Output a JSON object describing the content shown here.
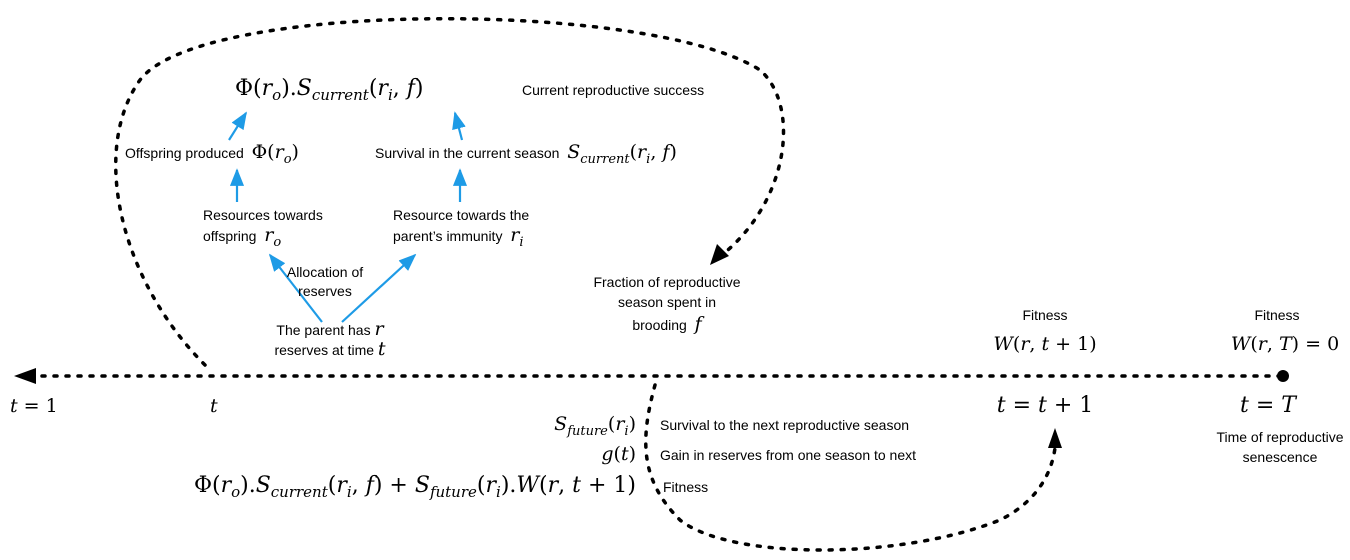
{
  "labels": [
    {
      "segments": [
        {
          "up": "Φ("
        },
        {
          "m": "r"
        },
        {
          "sub": "o"
        },
        {
          "up": ")."
        },
        {
          "m": "S"
        },
        {
          "sub": "current"
        },
        {
          "up": "("
        },
        {
          "m": "r"
        },
        {
          "sub": "i"
        },
        {
          "up": ", "
        },
        {
          "m": "f"
        },
        {
          "up": ")"
        }
      ]
    },
    {
      "segments": [
        {
          "t": "Current reproductive success"
        }
      ]
    },
    {
      "segments": [
        {
          "t": "Offspring produced  "
        },
        {
          "up": "Φ("
        },
        {
          "m": "r"
        },
        {
          "sub": "o"
        },
        {
          "up": ")"
        }
      ]
    },
    {
      "segments": [
        {
          "t": "Survival in the current season  "
        },
        {
          "m": "S"
        },
        {
          "sub": "current"
        },
        {
          "up": "("
        },
        {
          "m": "r"
        },
        {
          "sub": "i"
        },
        {
          "up": ", "
        },
        {
          "m": "f"
        },
        {
          "up": ")"
        }
      ]
    },
    {
      "segments": [
        {
          "t": "Resources towards"
        }
      ]
    },
    {
      "segments": [
        {
          "t": "offspring  "
        },
        {
          "m": "r"
        },
        {
          "sub": "o"
        }
      ]
    },
    {
      "segments": [
        {
          "t": "Resource towards the"
        }
      ]
    },
    {
      "segments": [
        {
          "t": "parent’s immunity  "
        },
        {
          "m": "r"
        },
        {
          "sub": "i"
        }
      ]
    },
    {
      "segments": [
        {
          "t": "Allocation of"
        }
      ]
    },
    {
      "segments": [
        {
          "t": "reserves"
        }
      ]
    },
    {
      "segments": [
        {
          "t": "The parent has "
        },
        {
          "m": "r"
        }
      ]
    },
    {
      "segments": [
        {
          "t": "reserves at time "
        },
        {
          "m": "t"
        }
      ]
    },
    {
      "segments": [
        {
          "t": "Fraction of reproductive"
        }
      ]
    },
    {
      "segments": [
        {
          "t": "season spent in"
        }
      ]
    },
    {
      "segments": [
        {
          "t": "brooding  "
        },
        {
          "m": "f"
        }
      ]
    },
    {
      "segments": [
        {
          "t": "Fitness"
        }
      ]
    },
    {
      "segments": [
        {
          "m": "W"
        },
        {
          "up": "("
        },
        {
          "m": "r"
        },
        {
          "up": ", "
        },
        {
          "m": "t"
        },
        {
          "up": " + 1)"
        }
      ]
    },
    {
      "segments": [
        {
          "t": "Fitness"
        }
      ]
    },
    {
      "segments": [
        {
          "m": "W"
        },
        {
          "up": "("
        },
        {
          "m": "r"
        },
        {
          "up": ", "
        },
        {
          "m": "T"
        },
        {
          "up": ") = 0"
        }
      ]
    },
    {
      "segments": [
        {
          "m": "t"
        },
        {
          "up": " = 1"
        }
      ]
    },
    {
      "segments": [
        {
          "m": "t"
        }
      ]
    },
    {
      "segments": [
        {
          "m": "t"
        },
        {
          "up": " = "
        },
        {
          "m": "t"
        },
        {
          "up": " + 1"
        }
      ]
    },
    {
      "segments": [
        {
          "m": "t"
        },
        {
          "up": " = "
        },
        {
          "m": "T"
        }
      ]
    },
    {
      "segments": [
        {
          "t": "Time of reproductive"
        }
      ]
    },
    {
      "segments": [
        {
          "t": "senescence"
        }
      ]
    },
    {
      "segments": [
        {
          "m": "S"
        },
        {
          "sub": "future"
        },
        {
          "up": "("
        },
        {
          "m": "r"
        },
        {
          "sub": "i"
        },
        {
          "up": ")"
        }
      ]
    },
    {
      "segments": [
        {
          "t": "Survival to the next reproductive season"
        }
      ]
    },
    {
      "segments": [
        {
          "m": "g"
        },
        {
          "up": "("
        },
        {
          "m": "t"
        },
        {
          "up": ")"
        }
      ]
    },
    {
      "segments": [
        {
          "t": "Gain in reserves from one season to next"
        }
      ]
    },
    {
      "segments": [
        {
          "up": "Φ("
        },
        {
          "m": "r"
        },
        {
          "sub": "o"
        },
        {
          "up": ")."
        },
        {
          "m": "S"
        },
        {
          "sub": "current"
        },
        {
          "up": "("
        },
        {
          "m": "r"
        },
        {
          "sub": "i"
        },
        {
          "up": ", "
        },
        {
          "m": "f"
        },
        {
          "up": ") + "
        },
        {
          "m": "S"
        },
        {
          "sub": "future"
        },
        {
          "up": "("
        },
        {
          "m": "r"
        },
        {
          "sub": "i"
        },
        {
          "up": ")."
        },
        {
          "m": "W"
        },
        {
          "up": "("
        },
        {
          "m": "r"
        },
        {
          "up": ", "
        },
        {
          "m": "t"
        },
        {
          "up": " + 1)"
        }
      ]
    },
    {
      "segments": [
        {
          "t": "Fitness"
        }
      ]
    }
  ]
}
